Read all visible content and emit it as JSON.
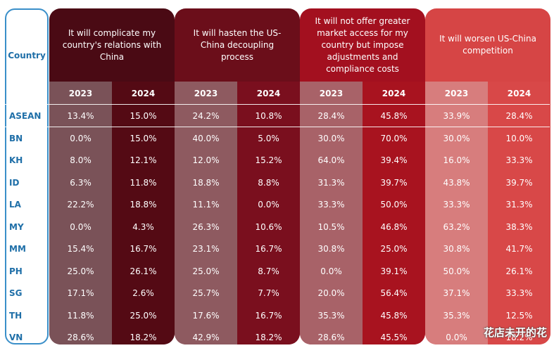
{
  "chart_data": {
    "type": "table",
    "country_header": "Country",
    "rows": [
      "ASEAN",
      "BN",
      "KH",
      "ID",
      "LA",
      "MY",
      "MM",
      "PH",
      "SG",
      "TH",
      "VN"
    ],
    "groups": [
      {
        "title": "It will complicate my country's relations with China",
        "colors": {
          "title": "#4a0a14",
          "c2023": "#7a5258",
          "c2024": "#540a14"
        },
        "columns": [
          {
            "year": "2023",
            "values": [
              "13.4%",
              "0.0%",
              "8.0%",
              "6.3%",
              "22.2%",
              "0.0%",
              "15.4%",
              "25.0%",
              "17.1%",
              "11.8%",
              "28.6%"
            ]
          },
          {
            "year": "2024",
            "values": [
              "15.0%",
              "15.0%",
              "12.1%",
              "11.8%",
              "18.8%",
              "4.3%",
              "16.7%",
              "26.1%",
              "2.6%",
              "25.0%",
              "18.2%"
            ]
          }
        ]
      },
      {
        "title": "It will hasten the US-China decoupling process",
        "colors": {
          "title": "#6b0e1a",
          "c2023": "#8e5a60",
          "c2024": "#7a0f1e"
        },
        "columns": [
          {
            "year": "2023",
            "values": [
              "24.2%",
              "40.0%",
              "12.0%",
              "18.8%",
              "11.1%",
              "26.3%",
              "23.1%",
              "25.0%",
              "25.7%",
              "17.6%",
              "42.9%"
            ]
          },
          {
            "year": "2024",
            "values": [
              "10.8%",
              "5.0%",
              "15.2%",
              "8.8%",
              "0.0%",
              "10.6%",
              "16.7%",
              "8.7%",
              "7.7%",
              "16.7%",
              "18.2%"
            ]
          }
        ]
      },
      {
        "title": "It will not offer greater market access for my country but impose adjustments and compliance costs",
        "colors": {
          "title": "#a3101f",
          "c2023": "#a86268",
          "c2024": "#a8131f"
        },
        "columns": [
          {
            "year": "2023",
            "values": [
              "28.4%",
              "30.0%",
              "64.0%",
              "31.3%",
              "33.3%",
              "10.5%",
              "30.8%",
              "0.0%",
              "20.0%",
              "35.3%",
              "28.6%"
            ]
          },
          {
            "year": "2024",
            "values": [
              "45.8%",
              "70.0%",
              "39.4%",
              "39.7%",
              "50.0%",
              "46.8%",
              "25.0%",
              "39.1%",
              "56.4%",
              "45.8%",
              "45.5%"
            ]
          }
        ]
      },
      {
        "title": "It will worsen US-China competition",
        "colors": {
          "title": "#d64545",
          "c2023": "#d77d7d",
          "c2024": "#d84848"
        },
        "columns": [
          {
            "year": "2023",
            "values": [
              "33.9%",
              "30.0%",
              "16.0%",
              "43.8%",
              "33.3%",
              "63.2%",
              "30.8%",
              "50.0%",
              "37.1%",
              "35.3%",
              "0.0%"
            ]
          },
          {
            "year": "2024",
            "values": [
              "28.4%",
              "10.0%",
              "33.3%",
              "39.7%",
              "31.3%",
              "38.3%",
              "41.7%",
              "26.1%",
              "33.3%",
              "12.5%",
              "18.2%"
            ]
          }
        ]
      }
    ]
  },
  "watermark": "花店未开的花"
}
